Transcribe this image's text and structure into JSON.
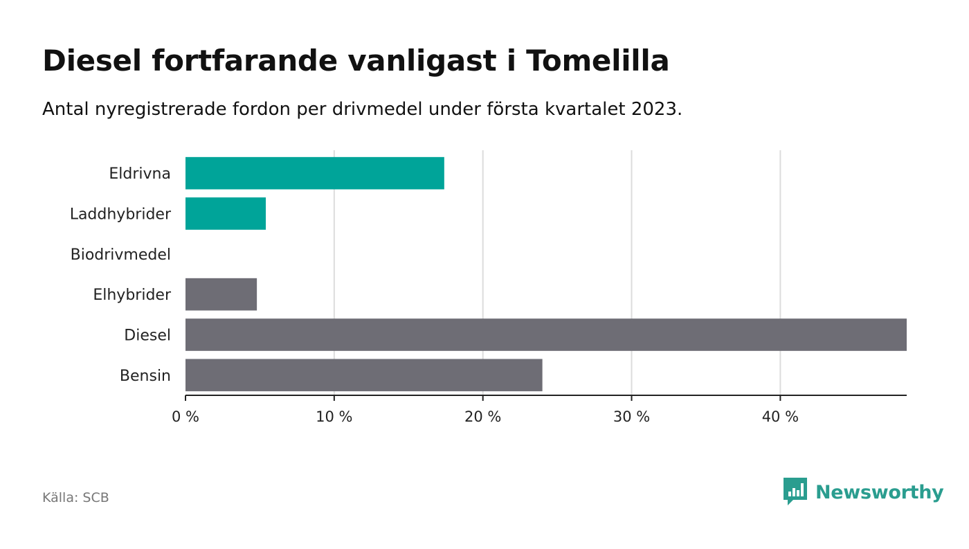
{
  "header": {
    "title": "Diesel fortfarande vanligast i Tomelilla",
    "subtitle": "Antal nyregistrerade fordon per drivmedel under första kvartalet 2023."
  },
  "footer": {
    "source": "Källa: SCB",
    "logo_text": "Newsworthy",
    "logo_color": "#2a9d8f"
  },
  "chart_data": {
    "type": "bar",
    "orientation": "horizontal",
    "title": "Diesel fortfarande vanligast i Tomelilla",
    "subtitle": "Antal nyregistrerade fordon per drivmedel under första kvartalet 2023.",
    "xlabel": "",
    "ylabel": "",
    "categories": [
      "Eldrivna",
      "Laddhybrider",
      "Biodrivmedel",
      "Elhybrider",
      "Diesel",
      "Bensin"
    ],
    "values": [
      17.4,
      5.4,
      0,
      4.8,
      48.5,
      24
    ],
    "bar_colors": [
      "#00a499",
      "#00a499",
      "#00a499",
      "#6e6d75",
      "#6e6d75",
      "#6e6d75"
    ],
    "xlim": [
      0,
      48.5
    ],
    "x_ticks": [
      0,
      10,
      20,
      30,
      40
    ],
    "x_tick_labels": [
      "0 %",
      "10 %",
      "20 %",
      "30 %",
      "40 %"
    ],
    "grid": true,
    "legend": "none",
    "source": "Källa: SCB"
  }
}
